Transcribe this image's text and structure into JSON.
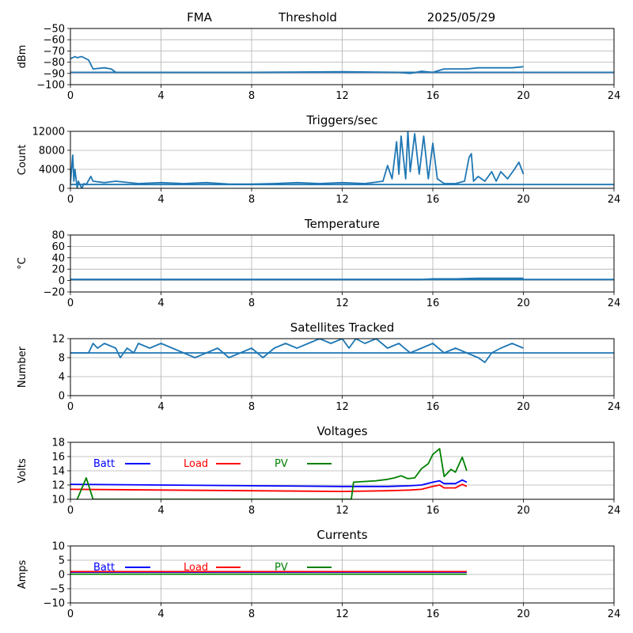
{
  "header": {
    "site": "FMA",
    "mode": "Threshold",
    "date": "2025/05/29"
  },
  "chart_data": [
    {
      "id": "threshold",
      "type": "line",
      "title": "",
      "ylabel": "dBm",
      "xlim": [
        0,
        24
      ],
      "ylim": [
        -100,
        -50
      ],
      "xticks": [
        0,
        4,
        8,
        12,
        16,
        20,
        24
      ],
      "yticks": [
        -50,
        -60,
        -70,
        -80,
        -90,
        -100
      ],
      "grid": true,
      "series": [
        {
          "name": "",
          "color": "#1f77b4",
          "x": [
            0,
            0.2,
            0.3,
            0.5,
            0.8,
            1.0,
            1.5,
            1.8,
            2.0,
            4,
            8,
            12,
            14.5,
            15,
            15.5,
            16,
            16.5,
            17.5,
            18,
            18.5,
            19,
            19.5,
            20
          ],
          "y": [
            -77,
            -75,
            -76,
            -75,
            -78,
            -86,
            -85,
            -86,
            -89,
            -89,
            -89,
            -88.5,
            -89,
            -90,
            -88,
            -89,
            -86,
            -86,
            -85,
            -85,
            -85,
            -85,
            -84
          ]
        },
        {
          "name": "",
          "color": "#1f77b4",
          "x": [
            0,
            20,
            24
          ],
          "y": [
            -89,
            -89,
            -89
          ]
        }
      ]
    },
    {
      "id": "triggers",
      "type": "line",
      "title": "Triggers/sec",
      "ylabel": "Count",
      "xlim": [
        0,
        24
      ],
      "ylim": [
        0,
        12000
      ],
      "xticks": [
        0,
        4,
        8,
        12,
        16,
        20,
        24
      ],
      "yticks": [
        0,
        4000,
        8000,
        12000
      ],
      "grid": true,
      "series": [
        {
          "name": "",
          "color": "#1f77b4",
          "x": [
            0,
            0.1,
            0.15,
            0.2,
            0.3,
            0.35,
            0.5,
            0.6,
            0.7,
            0.9,
            1.0,
            1.5,
            2,
            3,
            4,
            5,
            6,
            7,
            8,
            9,
            10,
            11,
            12,
            13,
            13.8,
            14,
            14.2,
            14.4,
            14.5,
            14.6,
            14.8,
            14.9,
            15.0,
            15.2,
            15.4,
            15.6,
            15.8,
            16.0,
            16.2,
            16.5,
            17,
            17.4,
            17.6,
            17.7,
            17.8,
            18.0,
            18.3,
            18.6,
            18.8,
            19.0,
            19.3,
            19.6,
            19.8,
            20
          ],
          "y": [
            1000,
            7000,
            1500,
            4000,
            0,
            1500,
            0,
            1000,
            800,
            2500,
            1500,
            1200,
            1500,
            1000,
            1200,
            1000,
            1200,
            900,
            900,
            1000,
            1200,
            1000,
            1200,
            1000,
            1500,
            4800,
            2000,
            9800,
            3000,
            11000,
            2000,
            12000,
            3500,
            11500,
            3000,
            11000,
            2000,
            9500,
            2000,
            1000,
            1000,
            1500,
            6500,
            7300,
            1500,
            2500,
            1500,
            3500,
            1500,
            3500,
            2000,
            4000,
            5500,
            3000
          ]
        },
        {
          "name": "",
          "color": "#1f77b4",
          "x": [
            0,
            20,
            24
          ],
          "y": [
            800,
            800,
            800
          ]
        }
      ]
    },
    {
      "id": "temperature",
      "type": "line",
      "title": "Temperature",
      "ylabel": "°C",
      "xlim": [
        0,
        24
      ],
      "ylim": [
        -20,
        80
      ],
      "xticks": [
        0,
        4,
        8,
        12,
        16,
        20,
        24
      ],
      "yticks": [
        80,
        60,
        40,
        20,
        0,
        -20
      ],
      "grid": true,
      "series": [
        {
          "name": "",
          "color": "#1f77b4",
          "x": [
            0,
            4,
            8,
            12,
            15.5,
            16,
            17,
            18,
            19,
            20
          ],
          "y": [
            2,
            2,
            2,
            2,
            2,
            3,
            3,
            4,
            4,
            4
          ]
        },
        {
          "name": "",
          "color": "#1f77b4",
          "x": [
            0,
            24
          ],
          "y": [
            2,
            2
          ]
        }
      ]
    },
    {
      "id": "satellites",
      "type": "line",
      "title": "Satellites Tracked",
      "ylabel": "Number",
      "xlim": [
        0,
        24
      ],
      "ylim": [
        0,
        12
      ],
      "xticks": [
        0,
        4,
        8,
        12,
        16,
        20,
        24
      ],
      "yticks": [
        0,
        4,
        8,
        12
      ],
      "grid": true,
      "series": [
        {
          "name": "",
          "color": "#1f77b4",
          "x": [
            0,
            0.8,
            1.0,
            1.2,
            1.5,
            2.0,
            2.2,
            2.5,
            2.8,
            3.0,
            3.5,
            4.0,
            4.5,
            5.0,
            5.5,
            6.0,
            6.5,
            7.0,
            7.5,
            8.0,
            8.5,
            9.0,
            9.5,
            10.0,
            10.5,
            11.0,
            11.5,
            12.0,
            12.3,
            12.6,
            13.0,
            13.5,
            14.0,
            14.5,
            15.0,
            15.5,
            16.0,
            16.5,
            17.0,
            17.5,
            18.0,
            18.3,
            18.6,
            19.0,
            19.5,
            20.0
          ],
          "y": [
            9,
            9,
            11,
            10,
            11,
            10,
            8,
            10,
            9,
            11,
            10,
            11,
            10,
            9,
            8,
            9,
            10,
            8,
            9,
            10,
            8,
            10,
            11,
            10,
            11,
            12,
            11,
            12,
            10,
            12,
            11,
            12,
            10,
            11,
            9,
            10,
            11,
            9,
            10,
            9,
            8,
            7,
            9,
            10,
            11,
            10
          ]
        },
        {
          "name": "",
          "color": "#1f77b4",
          "x": [
            0,
            24
          ],
          "y": [
            9,
            9
          ]
        }
      ]
    },
    {
      "id": "voltages",
      "type": "line",
      "title": "Voltages",
      "ylabel": "Volts",
      "xlim": [
        0,
        24
      ],
      "ylim": [
        10,
        18
      ],
      "xticks": [
        0,
        4,
        8,
        12,
        16,
        20,
        24
      ],
      "yticks": [
        10,
        12,
        14,
        16,
        18
      ],
      "grid": true,
      "legend_labels": [
        "Batt",
        "Load",
        "PV"
      ],
      "series": [
        {
          "name": "Batt",
          "color": "#0000ff",
          "x": [
            0,
            4,
            8,
            12,
            14,
            15,
            15.5,
            16,
            16.3,
            16.5,
            17,
            17.3,
            17.5
          ],
          "y": [
            12.1,
            12.0,
            11.9,
            11.8,
            11.8,
            11.9,
            12.0,
            12.4,
            12.6,
            12.2,
            12.2,
            12.7,
            12.4
          ]
        },
        {
          "name": "Load",
          "color": "#ff0000",
          "x": [
            0,
            4,
            8,
            12,
            14,
            15,
            15.5,
            16,
            16.3,
            16.5,
            17,
            17.3,
            17.5
          ],
          "y": [
            11.4,
            11.3,
            11.2,
            11.1,
            11.2,
            11.3,
            11.4,
            11.8,
            12.0,
            11.6,
            11.6,
            12.1,
            11.8
          ]
        },
        {
          "name": "PV",
          "color": "#008000",
          "x": [
            0.3,
            0.7,
            1.0,
            12.4,
            12.5,
            13.0,
            13.5,
            14.0,
            14.3,
            14.6,
            14.9,
            15.2,
            15.5,
            15.8,
            16.0,
            16.3,
            16.5,
            16.8,
            17.0,
            17.3,
            17.5
          ],
          "y": [
            10,
            13.0,
            10,
            10,
            12.4,
            12.5,
            12.6,
            12.8,
            13.0,
            13.3,
            12.9,
            13.0,
            14.3,
            15.0,
            16.3,
            17.1,
            13.2,
            14.2,
            13.8,
            15.9,
            14.0
          ]
        }
      ]
    },
    {
      "id": "currents",
      "type": "line",
      "title": "Currents",
      "ylabel": "Amps",
      "xlim": [
        0,
        24
      ],
      "ylim": [
        -10,
        10
      ],
      "xticks": [
        0,
        4,
        8,
        12,
        16,
        20,
        24
      ],
      "yticks": [
        10,
        5,
        0,
        -5,
        -10
      ],
      "grid": true,
      "legend_labels": [
        "Batt",
        "Load",
        "PV"
      ],
      "series": [
        {
          "name": "Batt",
          "color": "#0000ff",
          "x": [
            0,
            17.5
          ],
          "y": [
            0.8,
            0.8
          ]
        },
        {
          "name": "Load",
          "color": "#ff0000",
          "x": [
            0,
            17.5
          ],
          "y": [
            1.0,
            1.0
          ]
        },
        {
          "name": "PV",
          "color": "#008000",
          "x": [
            0,
            17.5
          ],
          "y": [
            0.1,
            0.1
          ]
        }
      ]
    }
  ]
}
